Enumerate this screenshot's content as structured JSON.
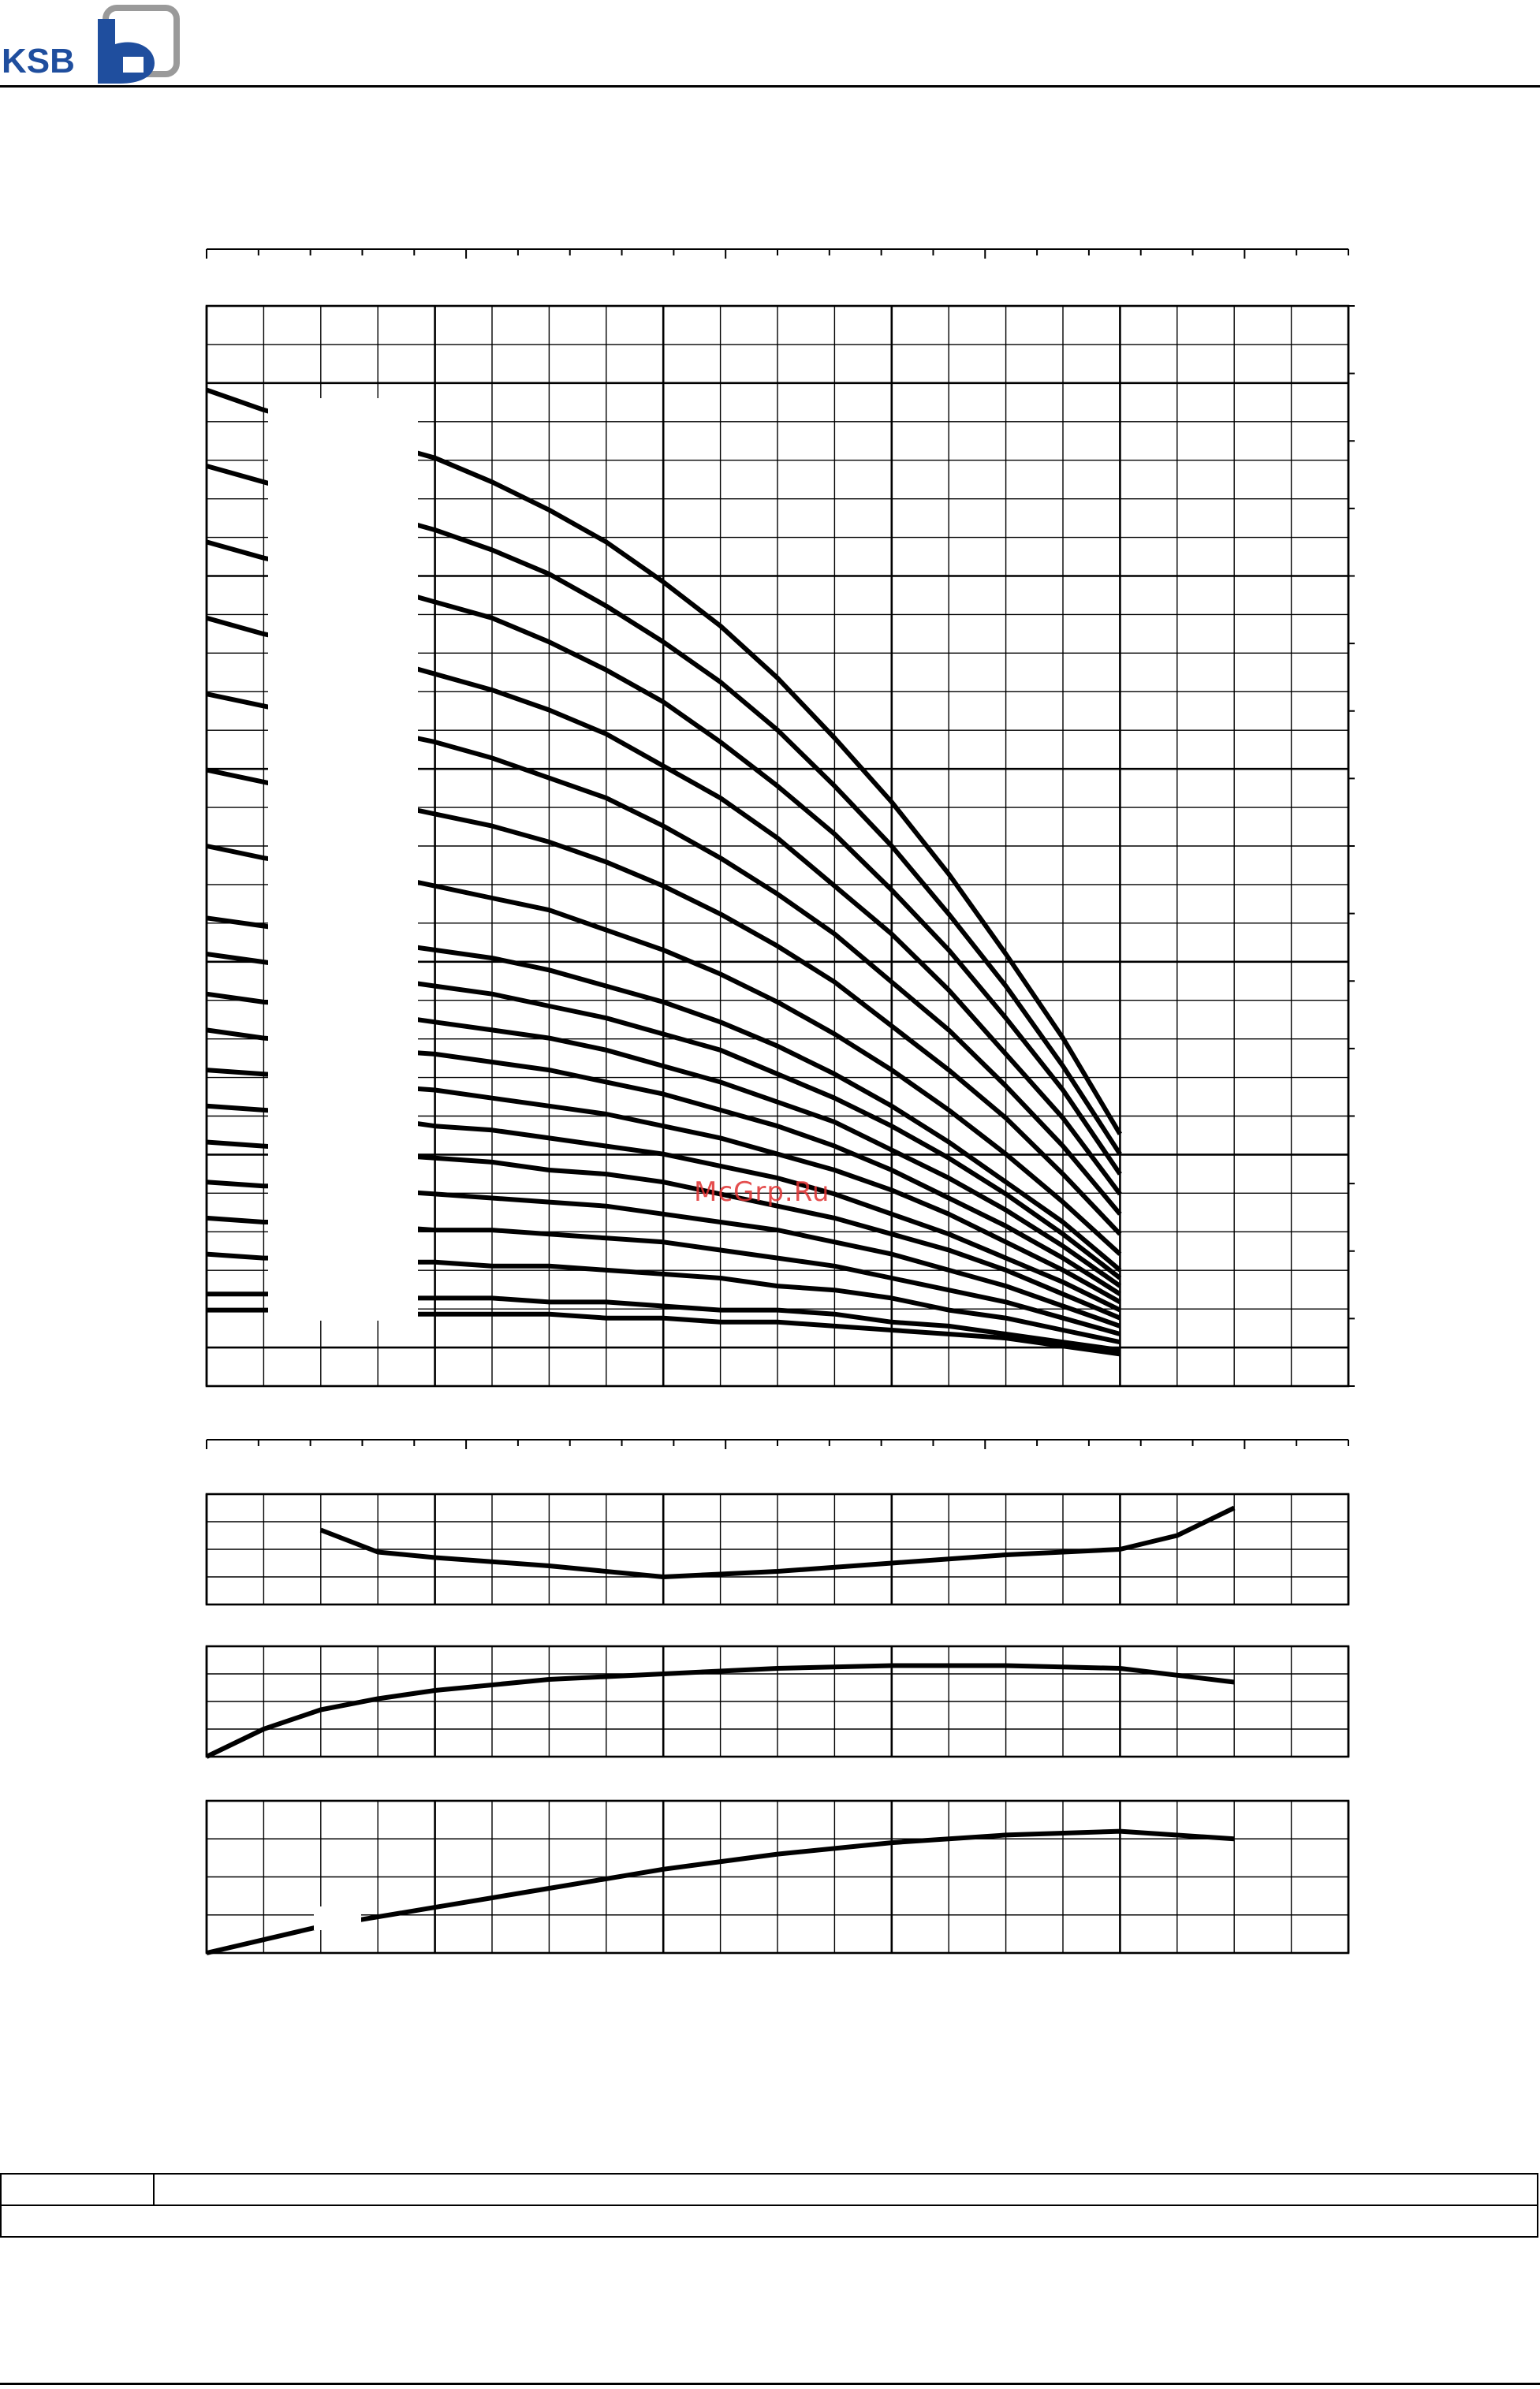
{
  "header": {
    "logo_text": "KSB"
  },
  "watermark": "McGrp.Ru",
  "footer_table": {
    "row1_col1": "",
    "row1_col2": "",
    "row2": ""
  },
  "colors": {
    "ink": "#000000",
    "watermark": "#e03030",
    "grid": "#000000"
  },
  "chart_data": [
    {
      "type": "line",
      "panel": "head",
      "x": [
        0,
        0.25,
        0.5,
        0.75,
        1.0,
        1.25,
        1.5,
        1.75,
        2.0,
        2.25,
        2.5,
        2.75,
        3.0,
        3.25,
        3.5,
        3.75,
        4.0,
        4.25,
        4.5,
        4.75,
        5.0
      ],
      "xlim": [
        0,
        5.0
      ],
      "ylim": [
        0,
        27
      ],
      "grid": true,
      "series": [
        {
          "values": [
            24.9,
            24.4,
            24.0,
            23.6,
            23.2,
            22.6,
            21.9,
            21.1,
            20.1,
            19.0,
            17.7,
            16.2,
            14.6,
            12.8,
            10.8,
            8.7,
            6.3,
            null,
            null,
            null,
            null
          ]
        },
        {
          "values": [
            23.0,
            22.6,
            22.2,
            21.8,
            21.4,
            20.9,
            20.3,
            19.5,
            18.6,
            17.6,
            16.4,
            15.0,
            13.5,
            11.8,
            10.0,
            8.0,
            5.8,
            null,
            null,
            null,
            null
          ]
        },
        {
          "values": [
            21.1,
            20.7,
            20.4,
            20.0,
            19.6,
            19.2,
            18.6,
            17.9,
            17.1,
            16.1,
            15.0,
            13.8,
            12.4,
            10.9,
            9.2,
            7.4,
            5.3,
            null,
            null,
            null,
            null
          ]
        },
        {
          "values": [
            19.2,
            18.8,
            18.5,
            18.2,
            17.8,
            17.4,
            16.9,
            16.3,
            15.5,
            14.7,
            13.7,
            12.5,
            11.3,
            9.9,
            8.3,
            6.7,
            4.8,
            null,
            null,
            null,
            null
          ]
        },
        {
          "values": [
            17.3,
            17.0,
            16.7,
            16.4,
            16.1,
            15.7,
            15.2,
            14.7,
            14.0,
            13.2,
            12.3,
            11.3,
            10.1,
            8.9,
            7.5,
            6.0,
            4.3,
            null,
            null,
            null,
            null
          ]
        },
        {
          "values": [
            15.4,
            15.1,
            14.8,
            14.6,
            14.3,
            14.0,
            13.6,
            13.1,
            12.5,
            11.8,
            11.0,
            10.1,
            9.0,
            7.9,
            6.7,
            5.3,
            3.8,
            null,
            null,
            null,
            null
          ]
        },
        {
          "values": [
            13.5,
            13.2,
            13.0,
            12.8,
            12.5,
            12.2,
            11.9,
            11.4,
            10.9,
            10.3,
            9.6,
            8.8,
            7.9,
            6.9,
            5.8,
            4.6,
            3.3,
            null,
            null,
            null,
            null
          ]
        },
        {
          "values": [
            11.7,
            11.5,
            11.3,
            11.1,
            10.9,
            10.7,
            10.4,
            10.0,
            9.6,
            9.1,
            8.5,
            7.8,
            7.0,
            6.1,
            5.1,
            4.1,
            2.9,
            null,
            null,
            null,
            null
          ]
        },
        {
          "values": [
            10.8,
            10.6,
            10.4,
            10.2,
            10.0,
            9.8,
            9.5,
            9.2,
            8.8,
            8.4,
            7.8,
            7.2,
            6.5,
            5.7,
            4.8,
            3.8,
            2.7,
            null,
            null,
            null,
            null
          ]
        },
        {
          "values": [
            9.8,
            9.6,
            9.5,
            9.3,
            9.1,
            8.9,
            8.7,
            8.4,
            8.0,
            7.6,
            7.1,
            6.6,
            5.9,
            5.2,
            4.4,
            3.5,
            2.5,
            null,
            null,
            null,
            null
          ]
        },
        {
          "values": [
            8.9,
            8.7,
            8.6,
            8.4,
            8.3,
            8.1,
            7.9,
            7.6,
            7.3,
            6.9,
            6.5,
            6.0,
            5.4,
            4.7,
            4.0,
            3.2,
            2.3,
            null,
            null,
            null,
            null
          ]
        },
        {
          "values": [
            7.9,
            7.8,
            7.7,
            7.5,
            7.4,
            7.2,
            7.0,
            6.8,
            6.5,
            6.2,
            5.8,
            5.4,
            4.9,
            4.3,
            3.6,
            2.9,
            2.1,
            null,
            null,
            null,
            null
          ]
        },
        {
          "values": [
            7.0,
            6.9,
            6.8,
            6.7,
            6.5,
            6.4,
            6.2,
            6.0,
            5.8,
            5.5,
            5.2,
            4.8,
            4.3,
            3.8,
            3.2,
            2.6,
            1.9,
            null,
            null,
            null,
            null
          ]
        },
        {
          "values": [
            6.1,
            6.0,
            5.9,
            5.8,
            5.7,
            5.6,
            5.4,
            5.3,
            5.1,
            4.8,
            4.5,
            4.2,
            3.8,
            3.4,
            2.9,
            2.3,
            1.7,
            null,
            null,
            null,
            null
          ]
        },
        {
          "values": [
            5.1,
            5.0,
            5.0,
            4.9,
            4.8,
            4.7,
            4.6,
            4.5,
            4.3,
            4.1,
            3.9,
            3.6,
            3.3,
            2.9,
            2.5,
            2.0,
            1.5,
            null,
            null,
            null,
            null
          ]
        },
        {
          "values": [
            4.2,
            4.1,
            4.1,
            4.0,
            3.9,
            3.9,
            3.8,
            3.7,
            3.6,
            3.4,
            3.2,
            3.0,
            2.7,
            2.4,
            2.1,
            1.7,
            1.3,
            null,
            null,
            null,
            null
          ]
        },
        {
          "values": [
            3.3,
            3.2,
            3.2,
            3.1,
            3.1,
            3.0,
            3.0,
            2.9,
            2.8,
            2.7,
            2.5,
            2.4,
            2.2,
            1.9,
            1.7,
            1.4,
            1.1,
            null,
            null,
            null,
            null
          ]
        },
        {
          "values": [
            2.3,
            2.3,
            2.3,
            2.2,
            2.2,
            2.2,
            2.1,
            2.1,
            2.0,
            1.9,
            1.9,
            1.8,
            1.6,
            1.5,
            1.3,
            1.1,
            0.9,
            null,
            null,
            null,
            null
          ]
        },
        {
          "values": [
            1.9,
            1.9,
            1.9,
            1.8,
            1.8,
            1.8,
            1.8,
            1.7,
            1.7,
            1.6,
            1.6,
            1.5,
            1.4,
            1.3,
            1.2,
            1.0,
            0.8,
            null,
            null,
            null,
            null
          ]
        }
      ]
    },
    {
      "type": "line",
      "panel": "npsh",
      "x": [
        0.5,
        0.75,
        1.0,
        1.5,
        2.0,
        2.5,
        3.0,
        3.5,
        4.0,
        4.25,
        4.5
      ],
      "xlim": [
        0,
        5.0
      ],
      "ylim": [
        0,
        4
      ],
      "grid": true,
      "series": [
        {
          "values": [
            2.7,
            1.9,
            1.7,
            1.4,
            1.0,
            1.2,
            1.5,
            1.8,
            2.0,
            2.5,
            3.5
          ]
        }
      ]
    },
    {
      "type": "line",
      "panel": "efficiency",
      "x": [
        0,
        0.25,
        0.5,
        0.75,
        1.0,
        1.5,
        2.0,
        2.5,
        3.0,
        3.5,
        4.0,
        4.5
      ],
      "xlim": [
        0,
        5.0
      ],
      "ylim": [
        0,
        4
      ],
      "grid": true,
      "series": [
        {
          "values": [
            0.0,
            1.0,
            1.7,
            2.1,
            2.4,
            2.8,
            3.0,
            3.2,
            3.3,
            3.3,
            3.2,
            2.7
          ]
        }
      ]
    },
    {
      "type": "line",
      "panel": "power",
      "x": [
        0,
        0.5,
        1.0,
        1.5,
        2.0,
        2.5,
        3.0,
        3.5,
        4.0,
        4.5
      ],
      "xlim": [
        0,
        5.0
      ],
      "ylim": [
        0,
        4
      ],
      "grid": true,
      "series": [
        {
          "values": [
            0.0,
            0.7,
            1.2,
            1.7,
            2.2,
            2.6,
            2.9,
            3.1,
            3.2,
            3.0
          ]
        }
      ]
    }
  ]
}
